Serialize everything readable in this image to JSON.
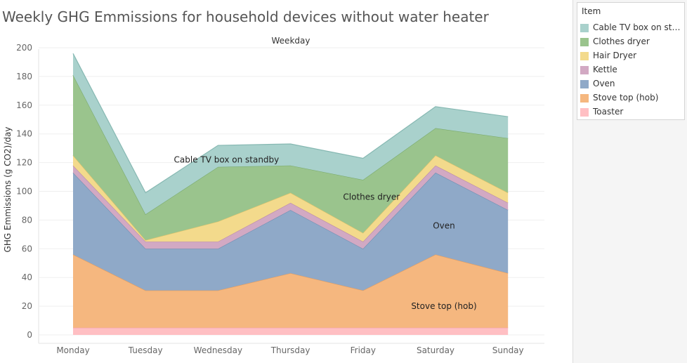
{
  "chart_data": {
    "type": "area",
    "stacked": true,
    "title": "Weekly GHG Emmissions for household devices without water heater",
    "header": "Weekday",
    "ylabel": "GHG Emmissions (g CO2)/day",
    "xlabel": "",
    "ylim": [
      0,
      200
    ],
    "yticks": [
      0,
      20,
      40,
      60,
      80,
      100,
      120,
      140,
      160,
      180,
      200
    ],
    "grid": true,
    "legend_position": "right",
    "legend_title": "Item",
    "x": [
      "Monday",
      "Tuesday",
      "Wednesday",
      "Thursday",
      "Friday",
      "Saturday",
      "Sunday"
    ],
    "series": [
      {
        "name": "Toaster",
        "color": "#ffbfc3",
        "line": "#f2a3a8",
        "values": [
          5,
          5,
          5,
          5,
          5,
          5,
          5
        ]
      },
      {
        "name": "Stove top (hob)",
        "color": "#f5b77f",
        "line": "#e39c5e",
        "values": [
          51,
          26,
          26,
          38,
          26,
          51,
          38
        ]
      },
      {
        "name": "Oven",
        "color": "#8fa9c8",
        "line": "#6f8fb3",
        "values": [
          57,
          29,
          29,
          44,
          29,
          57,
          44
        ]
      },
      {
        "name": "Kettle",
        "color": "#d2a9c3",
        "line": "#b98aaa",
        "values": [
          5,
          5,
          5,
          5,
          5,
          5,
          5
        ]
      },
      {
        "name": "Hair Dryer",
        "color": "#f3da8c",
        "line": "#dcc26a",
        "values": [
          7,
          1,
          14,
          7,
          6,
          7,
          7
        ]
      },
      {
        "name": "Clothes dryer",
        "color": "#9ac48d",
        "line": "#7aaa6c",
        "values": [
          56,
          18,
          38,
          19,
          37,
          19,
          38
        ]
      },
      {
        "name": "Cable TV box on standby",
        "color": "#a9d1cc",
        "line": "#86b8b2",
        "values": [
          15,
          15,
          15,
          15,
          15,
          15,
          15
        ]
      }
    ],
    "annotations": [
      {
        "text": "Cable TV box on standby",
        "x": "Wednesday",
        "y": 122
      },
      {
        "text": "Clothes dryer",
        "x": "Friday",
        "y": 96
      },
      {
        "text": "Oven",
        "x": "Saturday",
        "y": 76
      },
      {
        "text": "Stove top (hob)",
        "x": "Saturday",
        "y": 20
      }
    ]
  },
  "legend": {
    "title": "Item",
    "items": [
      {
        "label": "Cable TV box on stan..",
        "color": "#a9d1cc"
      },
      {
        "label": "Clothes dryer",
        "color": "#9ac48d"
      },
      {
        "label": "Hair Dryer",
        "color": "#f3da8c"
      },
      {
        "label": "Kettle",
        "color": "#d2a9c3"
      },
      {
        "label": "Oven",
        "color": "#8fa9c8"
      },
      {
        "label": "Stove top (hob)",
        "color": "#f5b77f"
      },
      {
        "label": "Toaster",
        "color": "#ffbfc3"
      }
    ]
  }
}
